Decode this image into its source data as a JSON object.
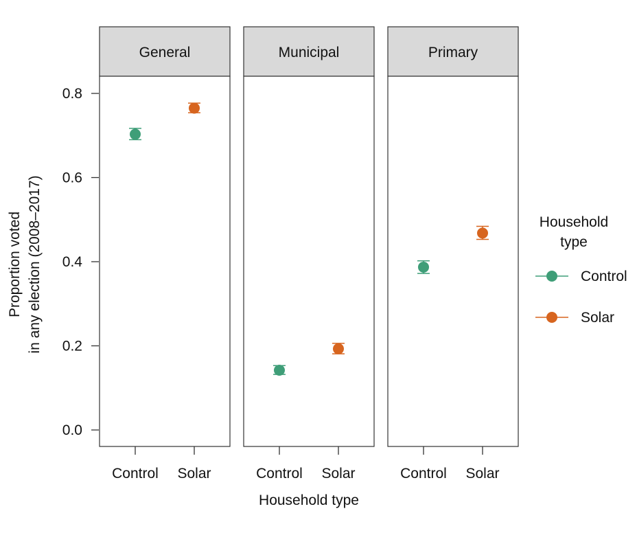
{
  "chart_data": {
    "type": "scatter",
    "title": "",
    "xlabel": "Household type",
    "ylabel_lines": [
      "Proportion voted",
      "in any election (2008–2017)"
    ],
    "ylim": [
      -0.04,
      0.835
    ],
    "yticks": [
      0.0,
      0.2,
      0.4,
      0.6,
      0.8
    ],
    "ytick_labels": [
      "0.0",
      "0.2",
      "0.4",
      "0.6",
      "0.8"
    ],
    "categories": [
      "Control",
      "Solar"
    ],
    "legend": {
      "title_lines": [
        "Household",
        "type"
      ],
      "placement": "right",
      "entries": [
        {
          "label": "Control",
          "color": "#3f9e78"
        },
        {
          "label": "Solar",
          "color": "#d7651f"
        }
      ]
    },
    "panels": [
      {
        "name": "General",
        "points": [
          {
            "x": "Control",
            "y": 0.703,
            "lo": 0.69,
            "hi": 0.717
          },
          {
            "x": "Solar",
            "y": 0.765,
            "lo": 0.754,
            "hi": 0.777
          }
        ]
      },
      {
        "name": "Municipal",
        "points": [
          {
            "x": "Control",
            "y": 0.142,
            "lo": 0.132,
            "hi": 0.153
          },
          {
            "x": "Solar",
            "y": 0.193,
            "lo": 0.181,
            "hi": 0.206
          }
        ]
      },
      {
        "name": "Primary",
        "points": [
          {
            "x": "Control",
            "y": 0.387,
            "lo": 0.372,
            "hi": 0.402
          },
          {
            "x": "Solar",
            "y": 0.468,
            "lo": 0.453,
            "hi": 0.484
          }
        ]
      }
    ]
  }
}
